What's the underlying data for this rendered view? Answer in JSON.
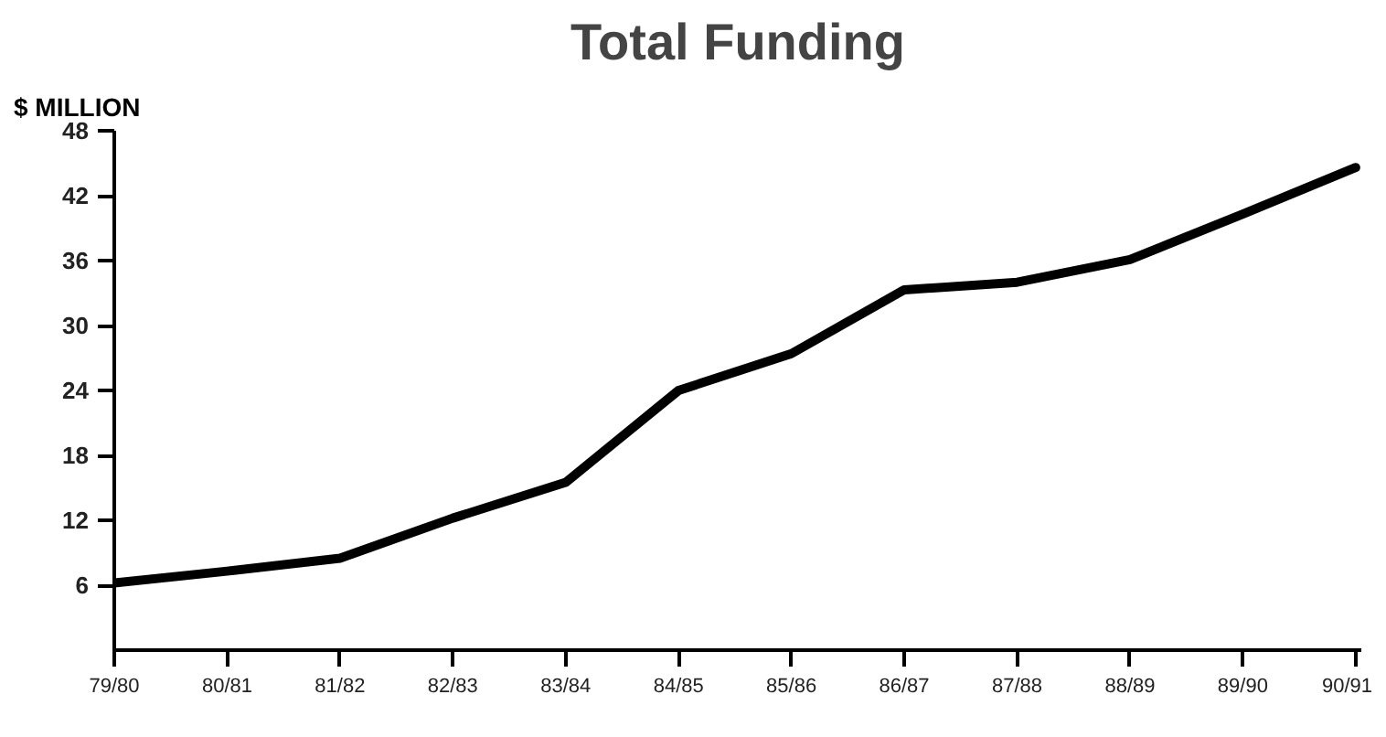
{
  "chart_data": {
    "type": "line",
    "title": "Total Funding",
    "ylabel": "$ MILLION",
    "categories": [
      "79/80",
      "80/81",
      "81/82",
      "82/83",
      "83/84",
      "84/85",
      "85/86",
      "86/87",
      "87/88",
      "88/89",
      "89/90",
      "90/91"
    ],
    "series": [
      {
        "color": "#000000",
        "values": [
          6.2,
          7.3,
          8.5,
          12.2,
          15.5,
          24.0,
          27.4,
          33.3,
          34.0,
          36.1,
          40.3,
          44.6
        ]
      }
    ],
    "ylim": [
      0,
      48
    ],
    "yticks": [
      6,
      12,
      18,
      24,
      30,
      36,
      42,
      48
    ],
    "grid": false,
    "marker": "none",
    "line_style": "solid"
  }
}
